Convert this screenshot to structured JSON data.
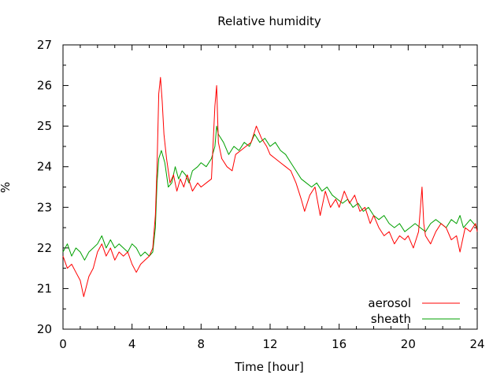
{
  "chart_data": {
    "type": "line",
    "title": "Relative humidity",
    "xlabel": "Time [hour]",
    "ylabel": "%",
    "xlim": [
      0,
      24
    ],
    "ylim": [
      20,
      27
    ],
    "xticks": [
      0,
      4,
      8,
      12,
      16,
      20,
      24
    ],
    "yticks": [
      20,
      21,
      22,
      23,
      24,
      25,
      26,
      27
    ],
    "grid": false,
    "legend_position": "bottom-right",
    "series": [
      {
        "name": "aerosol",
        "color": "#ff0000",
        "x": [
          0,
          0.25,
          0.5,
          0.75,
          1.0,
          1.2,
          1.5,
          1.75,
          2.0,
          2.25,
          2.5,
          2.75,
          3.0,
          3.25,
          3.5,
          3.75,
          4.0,
          4.25,
          4.5,
          4.75,
          5.0,
          5.2,
          5.35,
          5.45,
          5.55,
          5.65,
          5.75,
          5.85,
          6.0,
          6.2,
          6.4,
          6.6,
          6.8,
          7.0,
          7.2,
          7.5,
          7.8,
          8.0,
          8.3,
          8.6,
          8.8,
          8.9,
          9.0,
          9.2,
          9.5,
          9.8,
          10.0,
          10.3,
          10.6,
          10.9,
          11.2,
          11.5,
          11.8,
          12.0,
          12.3,
          12.6,
          12.9,
          13.2,
          13.5,
          13.8,
          14.0,
          14.3,
          14.6,
          14.9,
          15.2,
          15.5,
          15.8,
          16.0,
          16.3,
          16.6,
          16.9,
          17.2,
          17.5,
          17.8,
          18.0,
          18.3,
          18.6,
          18.9,
          19.2,
          19.5,
          19.8,
          20.0,
          20.3,
          20.6,
          20.8,
          20.9,
          21.0,
          21.3,
          21.6,
          21.9,
          22.2,
          22.5,
          22.8,
          23.0,
          23.3,
          23.6,
          23.9,
          24.0
        ],
        "y": [
          21.8,
          21.5,
          21.6,
          21.4,
          21.2,
          20.8,
          21.3,
          21.5,
          21.9,
          22.1,
          21.8,
          22.0,
          21.7,
          21.9,
          21.8,
          21.9,
          21.6,
          21.4,
          21.6,
          21.7,
          21.8,
          22.0,
          22.8,
          24.0,
          25.8,
          26.2,
          25.6,
          24.8,
          24.2,
          23.6,
          23.8,
          23.4,
          23.7,
          23.5,
          23.8,
          23.4,
          23.6,
          23.5,
          23.6,
          23.7,
          25.5,
          26.0,
          24.6,
          24.2,
          24.0,
          23.9,
          24.3,
          24.4,
          24.5,
          24.6,
          25.0,
          24.7,
          24.5,
          24.3,
          24.2,
          24.1,
          24.0,
          23.9,
          23.6,
          23.2,
          22.9,
          23.3,
          23.5,
          22.8,
          23.4,
          23.0,
          23.2,
          23.0,
          23.4,
          23.1,
          23.3,
          22.9,
          23.0,
          22.6,
          22.8,
          22.5,
          22.3,
          22.4,
          22.1,
          22.3,
          22.2,
          22.3,
          22.0,
          22.4,
          23.5,
          22.6,
          22.3,
          22.1,
          22.4,
          22.6,
          22.5,
          22.2,
          22.3,
          21.9,
          22.5,
          22.4,
          22.6,
          22.4
        ]
      },
      {
        "name": "sheath",
        "color": "#00a000",
        "x": [
          0,
          0.25,
          0.5,
          0.75,
          1.0,
          1.25,
          1.5,
          1.75,
          2.0,
          2.25,
          2.5,
          2.75,
          3.0,
          3.25,
          3.5,
          3.75,
          4.0,
          4.25,
          4.5,
          4.75,
          5.0,
          5.2,
          5.35,
          5.45,
          5.55,
          5.7,
          5.9,
          6.1,
          6.3,
          6.5,
          6.7,
          6.9,
          7.1,
          7.3,
          7.5,
          7.8,
          8.0,
          8.3,
          8.6,
          8.8,
          8.9,
          9.0,
          9.3,
          9.6,
          9.9,
          10.2,
          10.5,
          10.8,
          11.1,
          11.4,
          11.7,
          12.0,
          12.3,
          12.6,
          12.9,
          13.2,
          13.5,
          13.8,
          14.1,
          14.4,
          14.7,
          15.0,
          15.3,
          15.6,
          15.9,
          16.2,
          16.5,
          16.8,
          17.1,
          17.4,
          17.7,
          18.0,
          18.3,
          18.6,
          18.9,
          19.2,
          19.5,
          19.8,
          20.1,
          20.4,
          20.7,
          21.0,
          21.3,
          21.6,
          21.9,
          22.2,
          22.5,
          22.8,
          23.0,
          23.2,
          23.4,
          23.6,
          23.8,
          24.0
        ],
        "y": [
          21.9,
          22.1,
          21.8,
          22.0,
          21.9,
          21.7,
          21.9,
          22.0,
          22.1,
          22.3,
          22.0,
          22.2,
          22.0,
          22.1,
          22.0,
          21.9,
          22.1,
          22.0,
          21.8,
          21.9,
          21.8,
          21.9,
          22.5,
          23.6,
          24.2,
          24.4,
          24.1,
          23.5,
          23.6,
          24.0,
          23.7,
          23.9,
          23.8,
          23.6,
          23.9,
          24.0,
          24.1,
          24.0,
          24.2,
          24.5,
          25.0,
          24.8,
          24.6,
          24.3,
          24.5,
          24.4,
          24.6,
          24.5,
          24.8,
          24.6,
          24.7,
          24.5,
          24.6,
          24.4,
          24.3,
          24.1,
          23.9,
          23.7,
          23.6,
          23.5,
          23.6,
          23.4,
          23.5,
          23.3,
          23.2,
          23.1,
          23.2,
          23.0,
          23.1,
          22.9,
          23.0,
          22.8,
          22.7,
          22.8,
          22.6,
          22.5,
          22.6,
          22.4,
          22.5,
          22.6,
          22.5,
          22.4,
          22.6,
          22.7,
          22.6,
          22.5,
          22.7,
          22.6,
          22.8,
          22.5,
          22.6,
          22.7,
          22.6,
          22.5
        ]
      }
    ]
  }
}
